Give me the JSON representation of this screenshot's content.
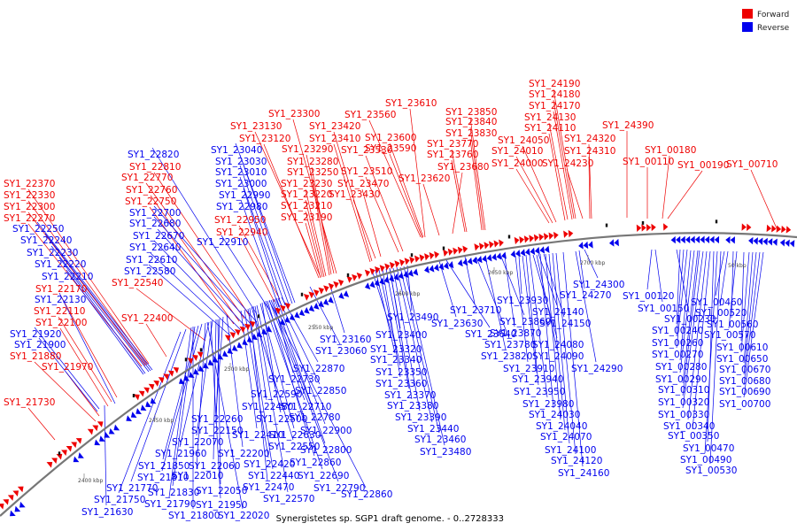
{
  "colors": {
    "forward": "#ee0000",
    "reverse": "#0000ee",
    "backbone": "#777777",
    "other": "#111111"
  },
  "legend": {
    "forward": {
      "label": "Forward",
      "color": "#ee0000"
    },
    "reverse": {
      "label": "Reverse",
      "color": "#0000ee"
    }
  },
  "caption": "Synergistetes sp. SGP1 draft genome. - 0..2728333",
  "ticks": [
    "2400 kbp",
    "2450 kbp",
    "2500 kbp",
    "2550 kbp",
    "2600 kbp",
    "2650 kbp",
    "2700 kbp",
    "50 kbp"
  ],
  "forward_genes": [
    "SY1_24190",
    "SY1_24180",
    "SY1_24170",
    "SY1_24130",
    "SY1_24110",
    "SY1_24050",
    "SY1_24010",
    "SY1_24000",
    "SY1_24230",
    "SY1_24320",
    "SY1_24310",
    "SY1_24390",
    "SY1_00180",
    "SY1_00110",
    "SY1_00190",
    "SY1_00710",
    "SY1_23610",
    "SY1_23560",
    "SY1_23600",
    "SY1_23590",
    "SY1_23850",
    "SY1_23840",
    "SY1_23830",
    "SY1_23770",
    "SY1_23760",
    "SY1_23680",
    "SY1_23620",
    "SY1_23300",
    "SY1_23130",
    "SY1_23120",
    "SY1_23420",
    "SY1_23410",
    "SY1_23290",
    "SY1_23280",
    "SY1_23250",
    "SY1_23230",
    "SY1_23220",
    "SY1_23210",
    "SY1_23190",
    "SY1_23530",
    "SY1_23510",
    "SY1_23470",
    "SY1_23430",
    "SY1_22810",
    "SY1_22770",
    "SY1_22760",
    "SY1_22750",
    "SY1_22950",
    "SY1_22940",
    "SY1_22370",
    "SY1_22330",
    "SY1_22300",
    "SY1_22270",
    "SY1_22540",
    "SY1_22400",
    "SY1_22170",
    "SY1_22110",
    "SY1_22100",
    "SY1_21880",
    "SY1_21970",
    "SY1_21730"
  ],
  "reverse_genes": [
    "SY1_22820",
    "SY1_23040",
    "SY1_23030",
    "SY1_23010",
    "SY1_23000",
    "SY1_22990",
    "SY1_22980",
    "SY1_22700",
    "SY1_22680",
    "SY1_22670",
    "SY1_22640",
    "SY1_22610",
    "SY1_22580",
    "SY1_22910",
    "SY1_22250",
    "SY1_22240",
    "SY1_22230",
    "SY1_22220",
    "SY1_22210",
    "SY1_22130",
    "SY1_21920",
    "SY1_21900",
    "SY1_24300",
    "SY1_24270",
    "SY1_00120",
    "SY1_00150",
    "SY1_00230",
    "SY1_00240",
    "SY1_00260",
    "SY1_00270",
    "SY1_00280",
    "SY1_00290",
    "SY1_00310",
    "SY1_00320",
    "SY1_00330",
    "SY1_00340",
    "SY1_00350",
    "SY1_00460",
    "SY1_00520",
    "SY1_00560",
    "SY1_00570",
    "SY1_00610",
    "SY1_00650",
    "SY1_00670",
    "SY1_00680",
    "SY1_00690",
    "SY1_00700",
    "SY1_00470",
    "SY1_00490",
    "SY1_00530",
    "SY1_23710",
    "SY1_23630",
    "SY1_23640",
    "SY1_23930",
    "SY1_23860",
    "SY1_23870",
    "SY1_23780",
    "SY1_23820",
    "SY1_23910",
    "SY1_23940",
    "SY1_23950",
    "SY1_23980",
    "SY1_24140",
    "SY1_24150",
    "SY1_24080",
    "SY1_24090",
    "SY1_24290",
    "SY1_24030",
    "SY1_24040",
    "SY1_24070",
    "SY1_24100",
    "SY1_24120",
    "SY1_24160",
    "SY1_23490",
    "SY1_23400",
    "SY1_23320",
    "SY1_23340",
    "SY1_23350",
    "SY1_23360",
    "SY1_23370",
    "SY1_23380",
    "SY1_23390",
    "SY1_23440",
    "SY1_23460",
    "SY1_23480",
    "SY1_23160",
    "SY1_23060",
    "SY1_22870",
    "SY1_22730",
    "SY1_22850",
    "SY1_22590",
    "SY1_22710",
    "SY1_22480",
    "SY1_22780",
    "SY1_22500",
    "SY1_22260",
    "SY1_22900",
    "SY1_22150",
    "SY1_22410",
    "SY1_22630",
    "SY1_22070",
    "SY1_22800",
    "SY1_22550",
    "SY1_21960",
    "SY1_22200",
    "SY1_22860",
    "SY1_22420",
    "SY1_21850",
    "SY1_22060",
    "SY1_22690",
    "SY1_22010",
    "SY1_22440",
    "SY1_21810",
    "SY1_22790",
    "SY1_22470",
    "SY1_21770",
    "SY1_21830",
    "SY1_22050",
    "SY1_21750",
    "SY1_21790",
    "SY1_21950",
    "SY1_22570",
    "SY1_22860",
    "SY1_21630",
    "SY1_21800",
    "SY1_22020"
  ]
}
